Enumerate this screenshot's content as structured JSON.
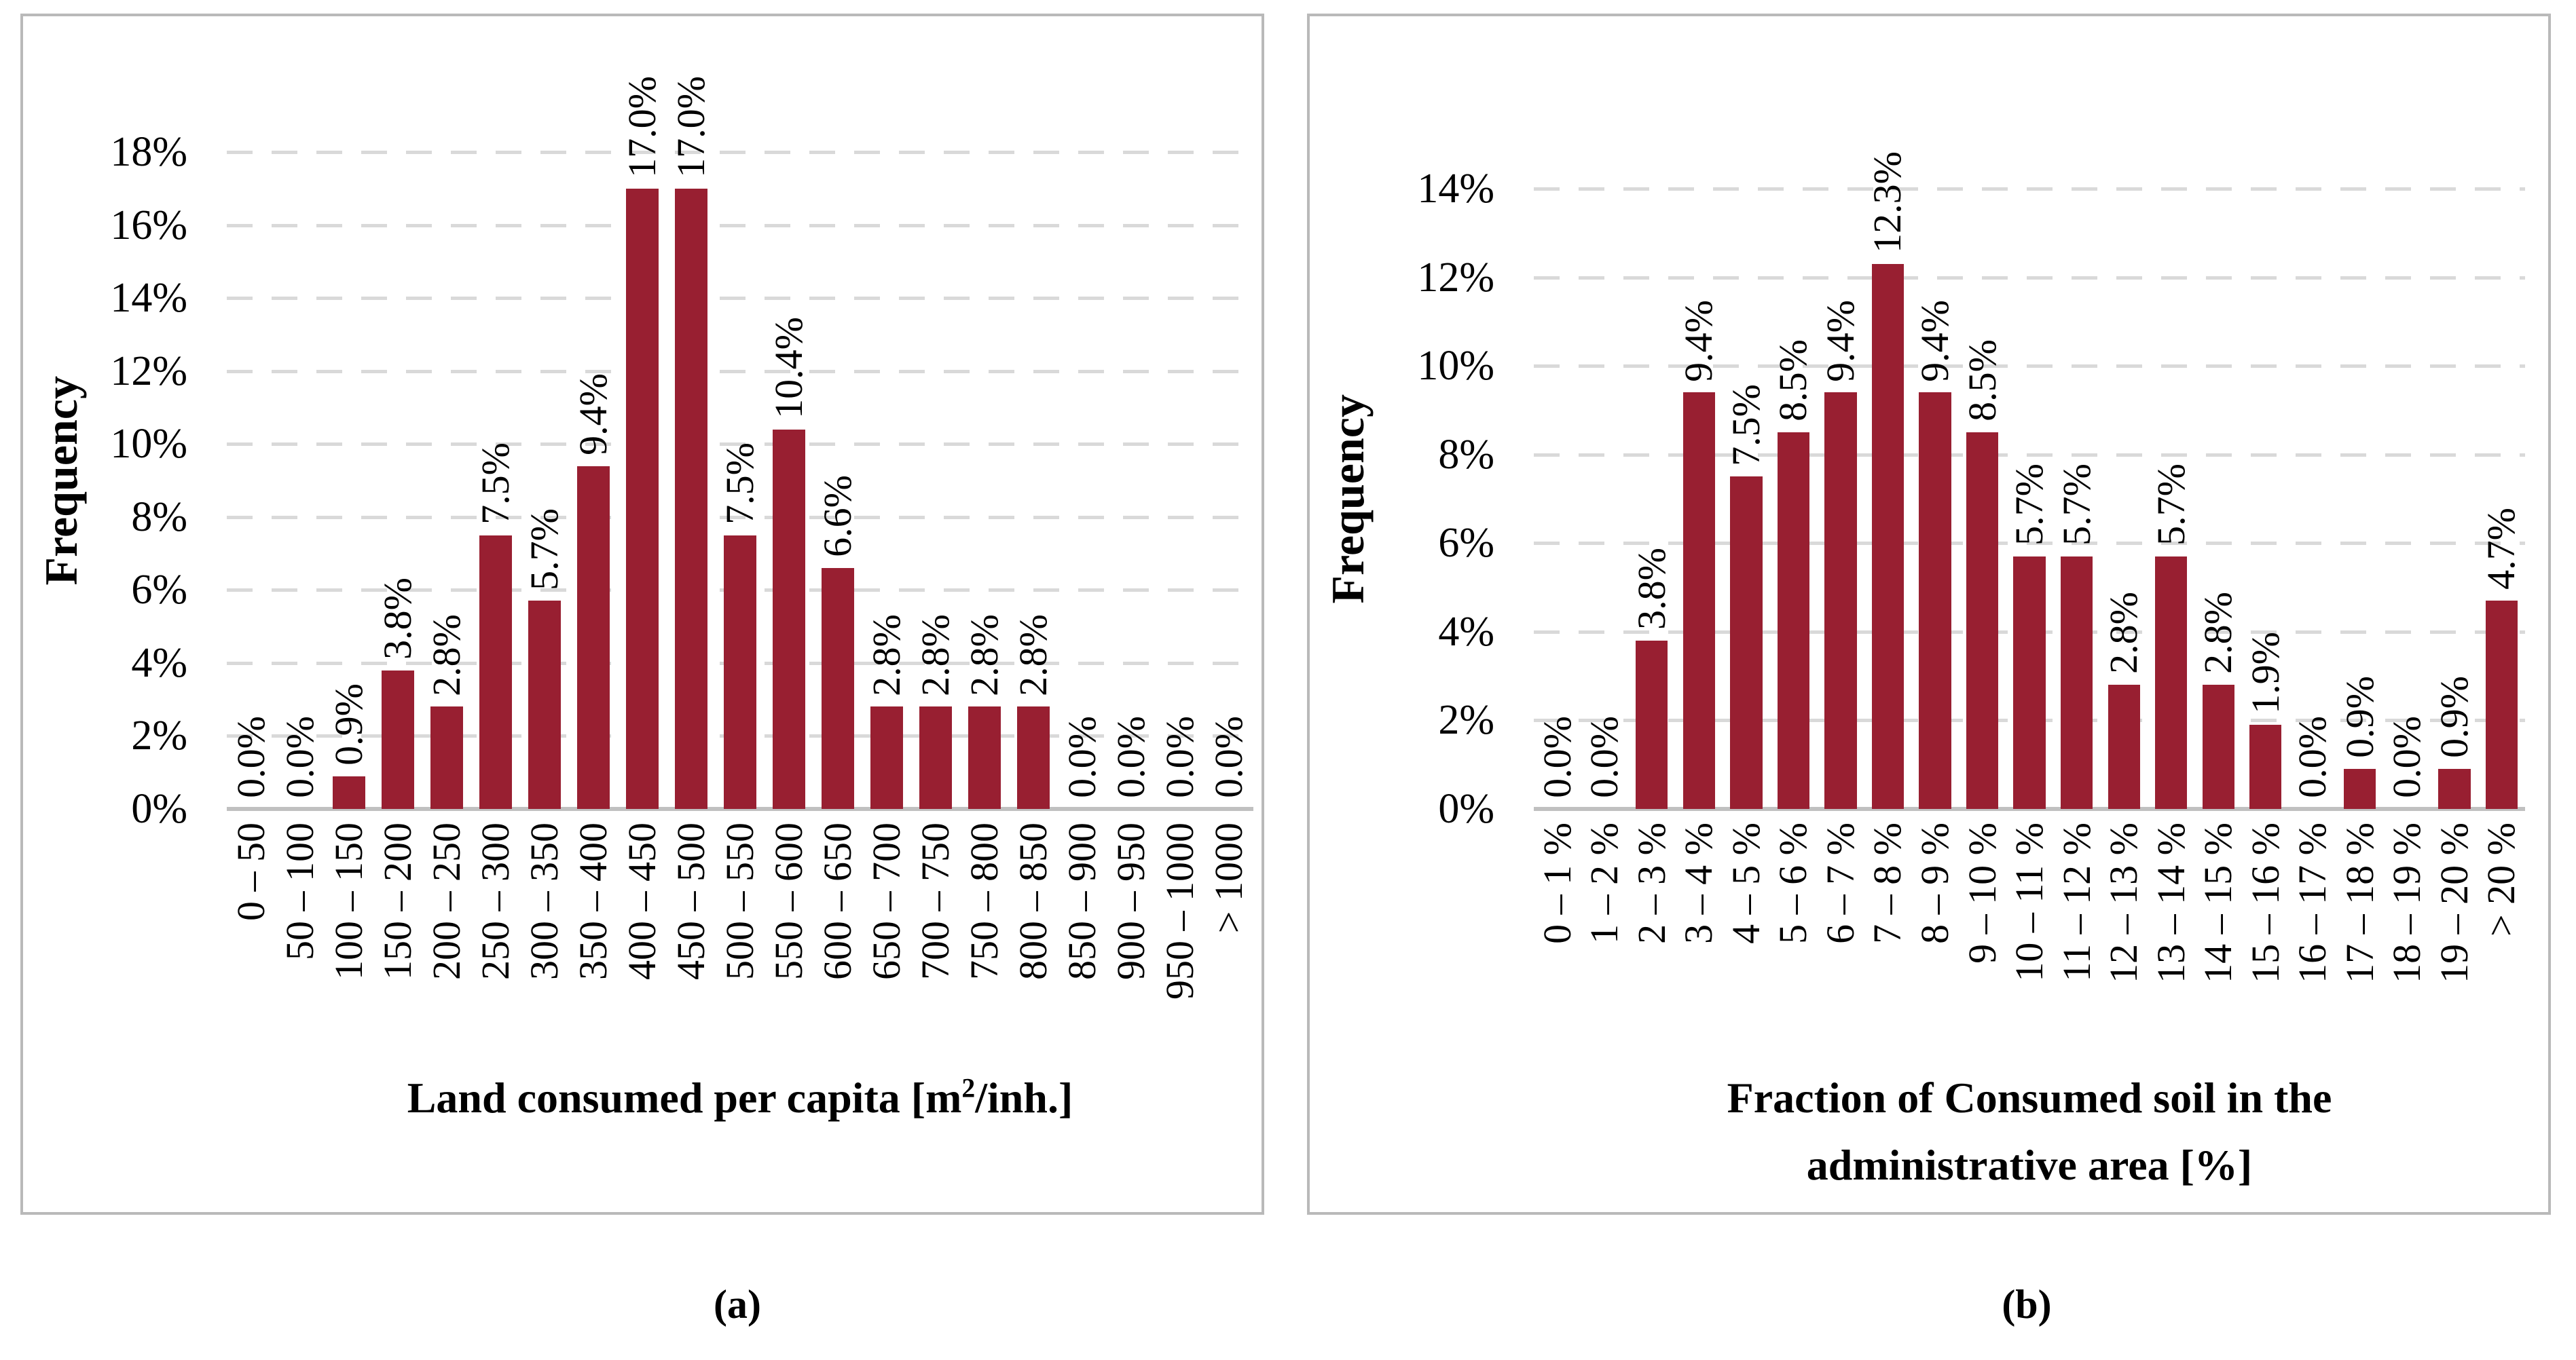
{
  "figure": {
    "caption_a": "(a)",
    "caption_b": "(b)"
  },
  "colors": {
    "bar": "#981f31",
    "gridline": "#d9d9d9",
    "axis_line": "#c0c0c0",
    "panel_border": "#b9b9b9"
  },
  "chart_data": [
    {
      "type": "bar",
      "panel": "a",
      "title_pre": "Land consumed per capita [m",
      "title_sup": "2",
      "title_post": "/inh.]",
      "ylabel": "Frequency",
      "ylim": [
        0,
        18
      ],
      "ytick_step": 2,
      "ytick_labels": [
        "18%",
        "16%",
        "14%",
        "12%",
        "10%",
        "8%",
        "6%",
        "4%",
        "2%",
        "0%"
      ],
      "grid": "horizontal-dashed",
      "legend": "none",
      "categories": [
        "0 – 50",
        "50 – 100",
        "100 – 150",
        "150 – 200",
        "200 – 250",
        "250 – 300",
        "300 – 350",
        "350 – 400",
        "400 – 450",
        "450 – 500",
        "500 – 550",
        "550 – 600",
        "600 – 650",
        "650 – 700",
        "700 – 750",
        "750 – 800",
        "800 – 850",
        "850 – 900",
        "900 – 950",
        "950 – 1000",
        "> 1000"
      ],
      "values": [
        0.0,
        0.0,
        0.9,
        3.8,
        2.8,
        7.5,
        5.7,
        9.4,
        17.0,
        17.0,
        7.5,
        10.4,
        6.6,
        2.8,
        2.8,
        2.8,
        2.8,
        0.0,
        0.0,
        0.0,
        0.0
      ],
      "value_labels": [
        "0.0%",
        "0.0%",
        "0.9%",
        "3.8%",
        "2.8%",
        "7.5%",
        "5.7%",
        "9.4%",
        "17.0%",
        "17.0%",
        "7.5%",
        "10.4%",
        "6.6%",
        "2.8%",
        "2.8%",
        "2.8%",
        "2.8%",
        "0.0%",
        "0.0%",
        "0.0%",
        "0.0%"
      ]
    },
    {
      "type": "bar",
      "panel": "b",
      "title_line1": "Fraction of Consumed soil in the",
      "title_line2": "administrative area [%]",
      "ylabel": "Frequency",
      "ylim": [
        0,
        14
      ],
      "ytick_step": 2,
      "ytick_labels": [
        "14%",
        "12%",
        "10%",
        "8%",
        "6%",
        "4%",
        "2%",
        "0%"
      ],
      "grid": "horizontal-dashed",
      "legend": "none",
      "categories": [
        "0 – 1 %",
        "1 – 2 %",
        "2 – 3 %",
        "3 – 4 %",
        "4 – 5 %",
        "5 – 6 %",
        "6 – 7 %",
        "7 – 8 %",
        "8 – 9 %",
        "9 – 10 %",
        "10 – 11 %",
        "11 – 12 %",
        "12 – 13 %",
        "13 – 14 %",
        "14 – 15 %",
        "15 – 16 %",
        "16 – 17 %",
        "17 – 18 %",
        "18 – 19 %",
        "19 – 20 %",
        "> 20 %"
      ],
      "values": [
        0.0,
        0.0,
        3.8,
        9.4,
        7.5,
        8.5,
        9.4,
        12.3,
        9.4,
        8.5,
        5.7,
        5.7,
        2.8,
        5.7,
        2.8,
        1.9,
        0.0,
        0.9,
        0.0,
        0.9,
        4.7
      ],
      "value_labels": [
        "0.0%",
        "0.0%",
        "3.8%",
        "9.4%",
        "7.5%",
        "8.5%",
        "9.4%",
        "12.3%",
        "9.4%",
        "8.5%",
        "5.7%",
        "5.7%",
        "2.8%",
        "5.7%",
        "2.8%",
        "1.9%",
        "0.0%",
        "0.9%",
        "0.0%",
        "0.9%",
        "4.7%"
      ]
    }
  ]
}
